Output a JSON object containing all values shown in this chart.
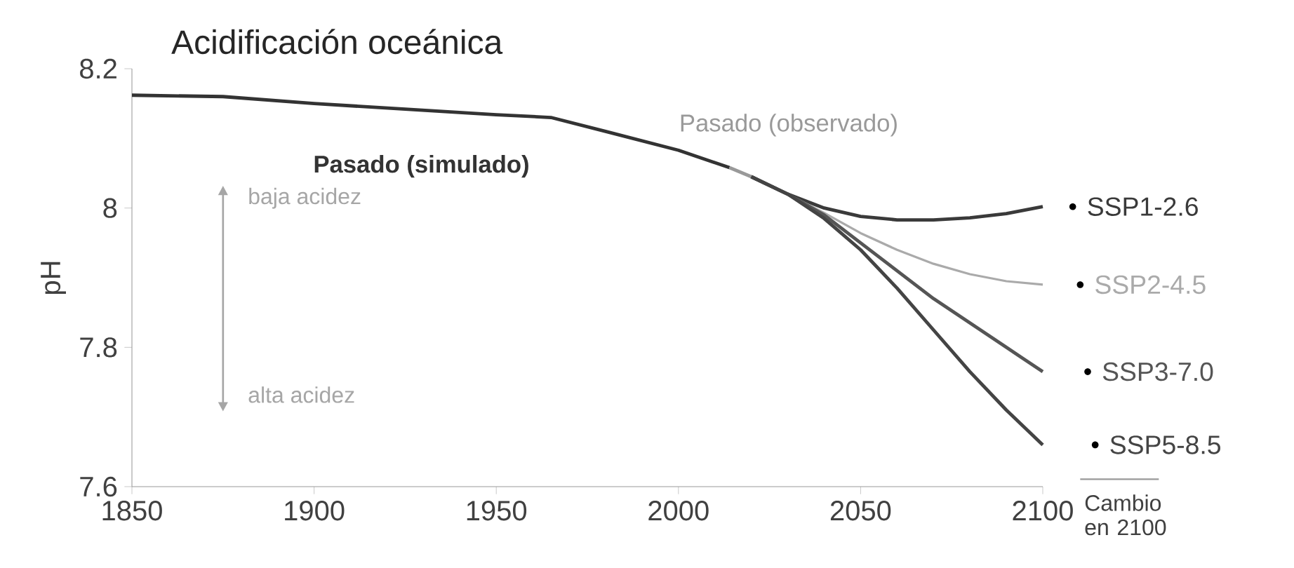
{
  "chart_data": {
    "type": "line",
    "title": "Acidificación oceánica",
    "ylabel": "pH",
    "xlim": [
      1850,
      2100
    ],
    "xticks": [
      1850,
      1900,
      1950,
      2000,
      2050,
      2100
    ],
    "ylim": [
      7.6,
      8.2
    ],
    "yticks": [
      7.6,
      7.8,
      8,
      8.2
    ],
    "line_style": "solid",
    "marker": "none",
    "grid": false,
    "annotations": [
      "baja acidez",
      "alta acidez",
      "Cambio en 2100"
    ],
    "series": [
      {
        "name": "Pasado (simulado)",
        "color": "#333333",
        "x": [
          1850,
          1875,
          1900,
          1925,
          1950,
          1965,
          1980,
          2000,
          2014
        ],
        "values": [
          8.162,
          8.16,
          8.15,
          8.142,
          8.134,
          8.13,
          8.11,
          8.083,
          8.058
        ]
      },
      {
        "name": "Pasado (observado)",
        "color": "#999999",
        "x": [
          2014,
          2020
        ],
        "values": [
          8.058,
          8.045
        ]
      },
      {
        "name": "SSP1-2.6",
        "color": "#3a3a3a",
        "x": [
          2020,
          2030,
          2040,
          2050,
          2060,
          2070,
          2080,
          2090,
          2100
        ],
        "values": [
          8.045,
          8.02,
          8.0,
          7.988,
          7.983,
          7.983,
          7.986,
          7.992,
          8.002
        ]
      },
      {
        "name": "SSP2-4.5",
        "color": "#aaaaaa",
        "x": [
          2020,
          2030,
          2040,
          2050,
          2060,
          2070,
          2080,
          2090,
          2100
        ],
        "values": [
          8.045,
          8.02,
          7.993,
          7.964,
          7.94,
          7.92,
          7.905,
          7.895,
          7.89
        ]
      },
      {
        "name": "SSP3-7.0",
        "color": "#555555",
        "x": [
          2020,
          2030,
          2040,
          2050,
          2060,
          2070,
          2080,
          2090,
          2100
        ],
        "values": [
          8.045,
          8.02,
          7.99,
          7.95,
          7.91,
          7.87,
          7.835,
          7.8,
          7.765
        ]
      },
      {
        "name": "SSP5-8.5",
        "color": "#444444",
        "x": [
          2020,
          2030,
          2040,
          2050,
          2060,
          2070,
          2080,
          2090,
          2100
        ],
        "values": [
          8.045,
          8.02,
          7.985,
          7.94,
          7.885,
          7.825,
          7.765,
          7.71,
          7.66
        ]
      }
    ]
  }
}
